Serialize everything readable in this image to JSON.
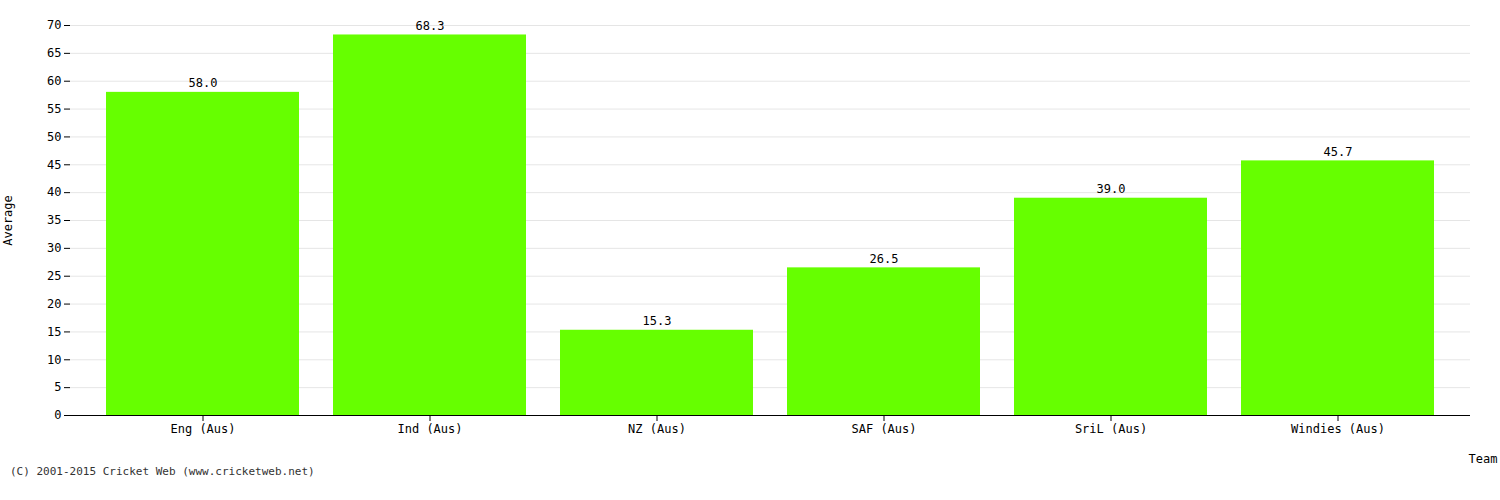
{
  "chart_data": {
    "type": "bar",
    "categories": [
      "Eng (Aus)",
      "Ind (Aus)",
      "NZ (Aus)",
      "SAF (Aus)",
      "SriL (Aus)",
      "Windies (Aus)"
    ],
    "values": [
      58.0,
      68.3,
      15.3,
      26.5,
      39.0,
      45.7
    ],
    "value_labels": [
      "58.0",
      "68.3",
      "15.3",
      "26.5",
      "39.0",
      "45.7"
    ],
    "data_labels": true,
    "color": "#66ff00",
    "xlabel": "Team",
    "ylabel": "Average",
    "ylim": [
      0,
      70
    ],
    "yticks": [
      0,
      5,
      10,
      15,
      20,
      25,
      30,
      35,
      40,
      45,
      50,
      55,
      60,
      65,
      70
    ],
    "grid": true,
    "footer": "(C) 2001-2015 Cricket Web (www.cricketweb.net)"
  }
}
